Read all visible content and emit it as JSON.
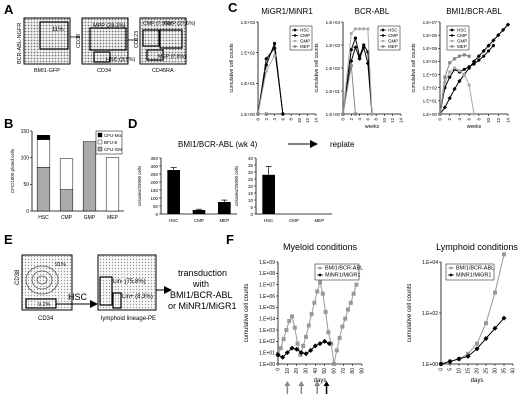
{
  "panels": {
    "A": {
      "letter": "A",
      "plot1": {
        "ylabel": "BCR-ABL-NGFR",
        "xlabel": "BMI1-GFP",
        "gate": "11%"
      },
      "plot2": {
        "ylabel": "CD38",
        "xlabel": "CD34",
        "mpp": "MPP (28.1%)",
        "hsc": "HSC (3.5%)"
      },
      "plot3": {
        "ylabel": "CD123",
        "xlabel": "CD45RA",
        "cmp": "CMP (7.9%)",
        "gmp": "GMP (27.6%)",
        "mep": "MEP (7.6%)"
      }
    },
    "B": {
      "letter": "B"
    },
    "C": {
      "letter": "C"
    },
    "D": {
      "letter": "D",
      "title": "BMI1/BCR-ABL (wk 4)",
      "replate": "replate"
    },
    "E": {
      "letter": "E",
      "plot1": {
        "ylabel": "CD38",
        "xlabel": "CD34",
        "top_pct": "91%",
        "gate_pct": "9.2%",
        "hsc": "HSC"
      },
      "plot2": {
        "xlabel": "lymphoid lineage-PE",
        "lin_neg": "Lin- (75.8%)",
        "lin_pos": "Lin+ (8.3%)"
      },
      "transduction": [
        "transduction",
        "with",
        "BMI1/BCR-ABL",
        "or MiNR1/MiGR1"
      ]
    },
    "F": {
      "letter": "F"
    }
  },
  "chart_data": [
    {
      "id": "B",
      "type": "bar",
      "ylabel": "CFC/1000 plated cells",
      "categories": [
        "HSC",
        "CMP",
        "GMP",
        "MEP"
      ],
      "ylim": [
        0,
        150
      ],
      "yticks": [
        "0",
        "50",
        "100",
        "150"
      ],
      "legend": [
        "CFU-Mix",
        "BFU-E",
        "CFU-GM"
      ],
      "legend_colors": [
        "#000000",
        "#ffffff",
        "#aaaaaa"
      ],
      "series": [
        {
          "name": "CFU-GM",
          "values": [
            82,
            40,
            130,
            0
          ]
        },
        {
          "name": "BFU-E",
          "values": [
            52,
            58,
            0,
            100
          ]
        },
        {
          "name": "CFU-Mix",
          "values": [
            8,
            0,
            0,
            0
          ]
        }
      ]
    },
    {
      "id": "C1",
      "type": "line",
      "title": "MiGR1/MiNR1",
      "ylabel": "cumulative cell counts",
      "xlabel": "weeks",
      "log": true,
      "ylim_exp": [
        0,
        3
      ],
      "ytick_labels": [
        "1.E+00",
        "1.E+01",
        "1.E+02",
        "1.E+03"
      ],
      "xticks": [
        "0",
        "2",
        "4",
        "6",
        "8",
        "10",
        "12",
        "14"
      ],
      "xlim": [
        0,
        14
      ],
      "legend": [
        "HSC",
        "CMP",
        "GMP",
        "MEP"
      ],
      "series": [
        {
          "name": "HSC",
          "x": [
            0,
            2,
            4,
            6
          ],
          "y_exp": [
            0,
            1.8,
            2.15,
            0
          ]
        },
        {
          "name": "CMP",
          "x": [
            0,
            2,
            4,
            6
          ],
          "y_exp": [
            0,
            1.6,
            2.3,
            0
          ]
        },
        {
          "name": "GMP",
          "x": [
            0,
            2,
            4
          ],
          "y_exp": [
            0,
            1.4,
            1.9
          ]
        },
        {
          "name": "MEP",
          "x": [
            0,
            2
          ],
          "y_exp": [
            0,
            0
          ]
        }
      ]
    },
    {
      "id": "C2",
      "type": "line",
      "title": "BCR-ABL",
      "ylabel": "cumulative cell counts",
      "xlabel": "weeks",
      "log": true,
      "ylim_exp": [
        0,
        4
      ],
      "ytick_labels": [
        "1.E+00",
        "1.E+01",
        "1.E+02",
        "1.E+03",
        "1.E+04"
      ],
      "xticks": [
        "0",
        "2",
        "4",
        "6",
        "8",
        "10",
        "12",
        "14"
      ],
      "xlim": [
        0,
        14
      ],
      "legend": [
        "HSC",
        "CMP",
        "GMP",
        "MEP"
      ],
      "series": [
        {
          "name": "HSC",
          "x": [
            0,
            2,
            3,
            4,
            5,
            6,
            7
          ],
          "y_exp": [
            0,
            2.3,
            2.9,
            2.4,
            2.9,
            2.2,
            0
          ]
        },
        {
          "name": "CMP",
          "x": [
            0,
            2,
            3,
            4,
            5,
            6,
            7
          ],
          "y_exp": [
            0,
            2.8,
            3.3,
            2.5,
            3.0,
            2.7,
            0
          ]
        },
        {
          "name": "GMP",
          "x": [
            0,
            2,
            3,
            4,
            5,
            6,
            7
          ],
          "y_exp": [
            0,
            3.5,
            3.7,
            3.7,
            3.7,
            3.7,
            0
          ]
        },
        {
          "name": "MEP",
          "x": [
            0,
            2,
            3
          ],
          "y_exp": [
            0,
            2.1,
            0
          ]
        }
      ]
    },
    {
      "id": "C3",
      "type": "line",
      "title": "BMI1/BCR-ABL",
      "ylabel": "cumulative cell counts",
      "xlabel": "weeks",
      "log": true,
      "ylim_exp": [
        0,
        7
      ],
      "ytick_labels": [
        "1.E+00",
        "1.E+01",
        "1.E+02",
        "1.E+03",
        "1.E+04",
        "1.E+05",
        "1.E+06",
        "1.E+07"
      ],
      "xticks": [
        "0",
        "2",
        "4",
        "6",
        "8",
        "10",
        "12",
        "14"
      ],
      "xlim": [
        0,
        14
      ],
      "legend": [
        "HSC",
        "CMP",
        "GMP",
        "MEP"
      ],
      "series": [
        {
          "name": "HSC",
          "x": [
            0,
            1,
            2,
            3,
            4,
            5,
            6,
            7,
            8,
            9,
            10,
            11,
            12,
            13,
            14
          ],
          "y_exp": [
            0,
            0.5,
            1.2,
            1.9,
            2.5,
            3.0,
            3.5,
            4.0,
            4.4,
            4.8,
            5.2,
            5.6,
            6.0,
            6.4,
            6.8
          ]
        },
        {
          "name": "CMP",
          "x": [
            0,
            1,
            2,
            3,
            4,
            5,
            6,
            7,
            8,
            9,
            10,
            11
          ],
          "y_exp": [
            0,
            2.0,
            2.8,
            3.4,
            3.2,
            3.4,
            3.6,
            3.8,
            4.1,
            4.4,
            4.8,
            5.2
          ]
        },
        {
          "name": "GMP",
          "x": [
            0,
            1,
            2,
            3,
            4,
            5,
            6,
            7
          ],
          "y_exp": [
            0,
            2.4,
            3.2,
            3.5,
            3.3,
            3.0,
            2.2,
            0
          ]
        },
        {
          "name": "MEP",
          "x": [
            0,
            1,
            2,
            3,
            4,
            5,
            6
          ],
          "y_exp": [
            0,
            2.8,
            3.9,
            4.2,
            4.4,
            4.5,
            4.4
          ]
        }
      ]
    },
    {
      "id": "D1",
      "type": "bar",
      "ylabel": "colonies/25000 cells",
      "categories": [
        "HSC",
        "CMP",
        "MEP"
      ],
      "values": [
        275,
        25,
        75
      ],
      "errors": [
        15,
        5,
        12
      ],
      "ylim": [
        0,
        350
      ],
      "yticks": [
        "0",
        "50",
        "100",
        "150",
        "200",
        "250",
        "300",
        "350"
      ]
    },
    {
      "id": "D2",
      "type": "bar",
      "ylabel": "colonies/25000 cells",
      "categories": [
        "HSC",
        "CMP",
        "MEP"
      ],
      "values": [
        28,
        0,
        0
      ],
      "errors": [
        6,
        0,
        0
      ],
      "ylim": [
        0,
        40
      ],
      "yticks": [
        "0",
        "5",
        "10",
        "15",
        "20",
        "25",
        "30",
        "35",
        "40"
      ]
    },
    {
      "id": "F1",
      "type": "line",
      "title": "Myeloid conditions",
      "ylabel": "cumulative cell counts",
      "xlabel": "days",
      "log": true,
      "ylim_exp": [
        0,
        9
      ],
      "ytick_labels": [
        "1.E+00",
        "1.E+01",
        "1.E+02",
        "1.E+03",
        "1.E+04",
        "1.E+05",
        "1.E+06",
        "1.E+07",
        "1.E+08",
        "1.E+09"
      ],
      "xticks": [
        "0",
        "10",
        "20",
        "30",
        "40",
        "50",
        "60",
        "70",
        "80",
        "90"
      ],
      "xlim": [
        0,
        90
      ],
      "legend": [
        "BMI1/BCR-ABL",
        "MiNR1/MiGR1"
      ],
      "arrows_x": [
        10,
        25,
        42,
        52
      ],
      "series": [
        {
          "name": "BMI1/BCR-ABL",
          "x": [
            0,
            3,
            6,
            9,
            12,
            15,
            18,
            21,
            24,
            27,
            30,
            33,
            36,
            39,
            42,
            45,
            48,
            51,
            54,
            57,
            60,
            63,
            66,
            69,
            72,
            75,
            78,
            81,
            84
          ],
          "y_exp": [
            0.8,
            1.4,
            2.2,
            3.0,
            3.8,
            4.2,
            3.2,
            1.8,
            0.8,
            1.6,
            2.4,
            3.4,
            4.4,
            5.4,
            6.4,
            7.2,
            6.2,
            4.6,
            2.8,
            1.8,
            0,
            1.2,
            2.3,
            3.3,
            4.0,
            4.8,
            5.4,
            6.2,
            7.0
          ]
        },
        {
          "name": "MiNR1/MiGR1",
          "x": [
            0,
            5,
            10,
            15,
            20,
            25,
            30,
            35,
            40,
            45,
            50,
            55
          ],
          "y_exp": [
            0.8,
            0.6,
            1.0,
            1.4,
            1.3,
            1.0,
            0.9,
            1.2,
            1.6,
            1.8,
            2.0,
            1.8
          ]
        }
      ]
    },
    {
      "id": "F2",
      "type": "line",
      "title": "Lymphoid conditions",
      "ylabel": "cumulative cell counts",
      "xlabel": "days",
      "log": true,
      "ylim_exp": [
        0,
        4
      ],
      "ytick_labels": [
        "1.E+00",
        "1.E+02",
        "1.E+04"
      ],
      "ytick_exps": [
        0,
        2,
        4
      ],
      "xticks": [
        "0",
        "5",
        "10",
        "15",
        "20",
        "25",
        "30",
        "35",
        "40"
      ],
      "xlim": [
        0,
        40
      ],
      "legend": [
        "BMI1/BCR-ABL",
        "MiNR1/MiGR1"
      ],
      "series": [
        {
          "name": "BMI1/BCR-ABL",
          "x": [
            0,
            5,
            10,
            15,
            20,
            25,
            30,
            35
          ],
          "y_exp": [
            0,
            0.1,
            0.2,
            0.4,
            0.8,
            1.6,
            2.8,
            4.3
          ]
        },
        {
          "name": "MiNR1/MiGR1",
          "x": [
            0,
            5,
            10,
            15,
            20,
            25,
            30,
            35
          ],
          "y_exp": [
            0,
            0.1,
            0.2,
            0.3,
            0.6,
            1.0,
            1.4,
            1.8
          ]
        }
      ]
    }
  ]
}
